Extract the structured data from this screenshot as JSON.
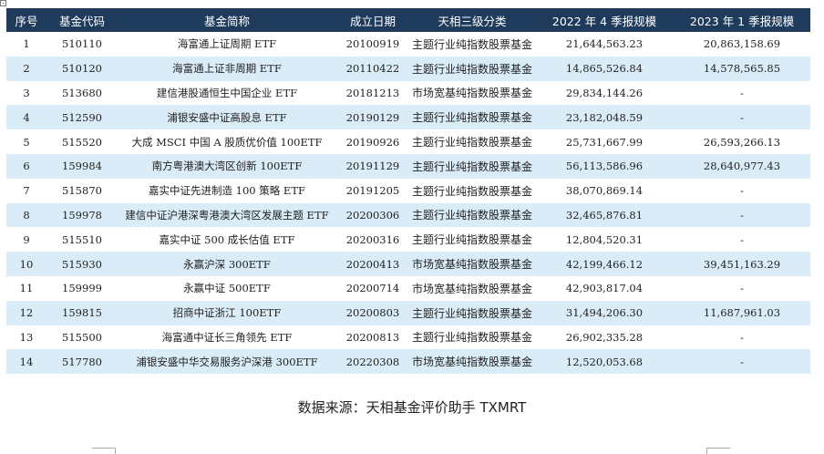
{
  "table": {
    "headers": [
      "序号",
      "基金代码",
      "基金简称",
      "成立日期",
      "天相三级分类",
      "2022 年 4 季报规模",
      "2023 年 1 季报规模"
    ],
    "rows": [
      [
        "1",
        "510110",
        "海富通上证周期 ETF",
        "20100919",
        "主题行业纯指数股票基金",
        "21,644,563.23",
        "20,863,158.69"
      ],
      [
        "2",
        "510120",
        "海富通上证非周期 ETF",
        "20110422",
        "主题行业纯指数股票基金",
        "14,865,526.84",
        "14,578,565.85"
      ],
      [
        "3",
        "513680",
        "建信港股通恒生中国企业 ETF",
        "20181213",
        "市场宽基纯指数股票基金",
        "29,834,144.26",
        "-"
      ],
      [
        "4",
        "512590",
        "浦银安盛中证高股息 ETF",
        "20190129",
        "主题行业纯指数股票基金",
        "23,182,048.59",
        "-"
      ],
      [
        "5",
        "515520",
        "大成 MSCI 中国 A 股质优价值 100ETF",
        "20190926",
        "主题行业纯指数股票基金",
        "25,731,667.99",
        "26,593,266.13"
      ],
      [
        "6",
        "159984",
        "南方粤港澳大湾区创新 100ETF",
        "20191129",
        "主题行业纯指数股票基金",
        "56,113,586.96",
        "28,640,977.43"
      ],
      [
        "7",
        "515870",
        "嘉实中证先进制造 100 策略 ETF",
        "20191205",
        "主题行业纯指数股票基金",
        "38,070,869.14",
        "-"
      ],
      [
        "8",
        "159978",
        "建信中证沪港深粤港澳大湾区发展主题 ETF",
        "20200306",
        "主题行业纯指数股票基金",
        "32,465,876.81",
        "-"
      ],
      [
        "9",
        "515510",
        "嘉实中证 500 成长估值 ETF",
        "20200316",
        "主题行业纯指数股票基金",
        "12,804,520.31",
        "-"
      ],
      [
        "10",
        "515930",
        "永赢沪深 300ETF",
        "20200413",
        "市场宽基纯指数股票基金",
        "42,199,466.12",
        "39,451,163.29"
      ],
      [
        "11",
        "159999",
        "永赢中证 500ETF",
        "20200714",
        "市场宽基纯指数股票基金",
        "42,903,817.04",
        "-"
      ],
      [
        "12",
        "159815",
        "招商中证浙江 100ETF",
        "20200803",
        "主题行业纯指数股票基金",
        "31,494,206.30",
        "11,687,961.03"
      ],
      [
        "13",
        "515500",
        "海富通中证长三角领先 ETF",
        "20200813",
        "主题行业纯指数股票基金",
        "26,902,335.28",
        "-"
      ],
      [
        "14",
        "517780",
        "浦银安盛中华交易服务沪深港 300ETF",
        "20220308",
        "市场宽基纯指数股票基金",
        "12,520,053.68",
        "-"
      ]
    ]
  },
  "source_note": "数据来源：天相基金评价助手 TXMRT",
  "colors": {
    "header_bg": "#1f3b5c",
    "stripe_bg": "#d9ecf7"
  }
}
